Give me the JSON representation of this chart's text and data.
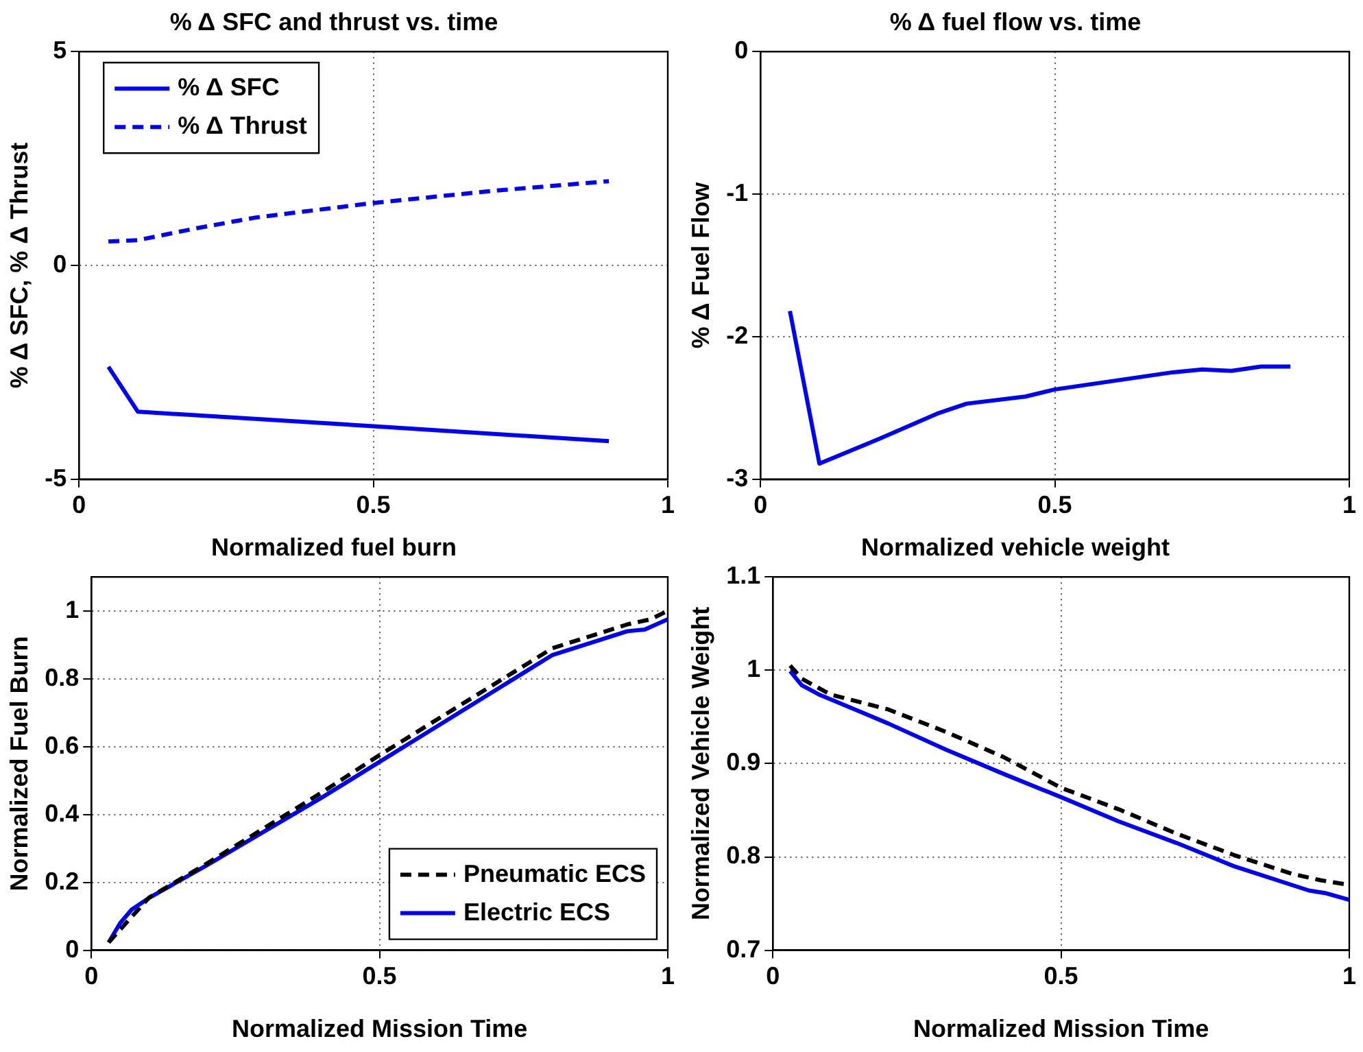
{
  "chart_data": [
    {
      "type": "line",
      "title": "% Δ SFC and thrust vs. time",
      "ylabel": "% Δ SFC, % Δ Thrust",
      "xlim": [
        0,
        1
      ],
      "xticks": [
        0,
        0.5,
        1
      ],
      "ylim": [
        -5,
        5
      ],
      "yticks": [
        -5,
        0,
        5
      ],
      "grid": true,
      "legend": "top left",
      "marker": "none",
      "series": [
        {
          "name": "% Δ SFC",
          "color": "#0000ff",
          "line_style": "solid",
          "x": [
            0.05,
            0.1,
            0.5,
            0.9
          ],
          "values": [
            -2.37,
            -3.42,
            -3.76,
            -4.11
          ]
        },
        {
          "name": "% Δ Thrust",
          "color": "#0000ff",
          "line_style": "dashed",
          "x": [
            0.05,
            0.1,
            0.2,
            0.3,
            0.5,
            0.7,
            0.9
          ],
          "values": [
            0.56,
            0.59,
            0.87,
            1.12,
            1.46,
            1.74,
            1.97
          ]
        }
      ]
    },
    {
      "type": "line",
      "title": "% Δ fuel flow vs. time",
      "ylabel": "% Δ Fuel Flow",
      "xlim": [
        0,
        1
      ],
      "xticks": [
        0,
        0.5,
        1
      ],
      "ylim": [
        -3,
        0
      ],
      "yticks": [
        -3,
        -2,
        -1,
        0
      ],
      "grid": true,
      "marker": "none",
      "series": [
        {
          "color": "#0000ff",
          "line_style": "solid",
          "x": [
            0.05,
            0.1,
            0.2,
            0.3,
            0.35,
            0.45,
            0.5,
            0.6,
            0.7,
            0.75,
            0.8,
            0.85,
            0.9
          ],
          "values": [
            -1.82,
            -2.89,
            -2.72,
            -2.54,
            -2.47,
            -2.42,
            -2.37,
            -2.31,
            -2.25,
            -2.23,
            -2.24,
            -2.21,
            -2.21
          ]
        }
      ]
    },
    {
      "type": "line",
      "title": "Normalized fuel burn",
      "xlabel": "Normalized Mission Time",
      "ylabel": "Normalized Fuel Burn",
      "xlim": [
        0,
        1
      ],
      "xticks": [
        0,
        0.5,
        1
      ],
      "ylim": [
        0,
        1.1
      ],
      "yticks": [
        0,
        0.2,
        0.4,
        0.6,
        0.8,
        1
      ],
      "grid": true,
      "legend": "bottom right",
      "marker": "none",
      "series": [
        {
          "name": "Pneumatic ECS",
          "color": "#000000",
          "line_style": "dashed",
          "x": [
            0.03,
            0.1,
            0.2,
            0.3,
            0.4,
            0.5,
            0.6,
            0.7,
            0.8,
            0.93,
            0.97,
            1.0
          ],
          "values": [
            0.023,
            0.155,
            0.255,
            0.36,
            0.465,
            0.575,
            0.68,
            0.785,
            0.89,
            0.96,
            0.975,
            1.0
          ]
        },
        {
          "name": "Electric ECS",
          "color": "#0000ff",
          "line_style": "solid",
          "x": [
            0.03,
            0.05,
            0.07,
            0.1,
            0.2,
            0.3,
            0.4,
            0.5,
            0.6,
            0.7,
            0.8,
            0.93,
            0.96,
            1.0
          ],
          "values": [
            0.023,
            0.08,
            0.12,
            0.154,
            0.25,
            0.35,
            0.45,
            0.555,
            0.66,
            0.765,
            0.87,
            0.94,
            0.945,
            0.975
          ]
        }
      ]
    },
    {
      "type": "line",
      "title": "Normalized vehicle weight",
      "xlabel": "Normalized Mission Time",
      "ylabel": "Normalized Vehicle Weight",
      "xlim": [
        0,
        1
      ],
      "xticks": [
        0,
        0.5,
        1
      ],
      "ylim": [
        0.7,
        1.1
      ],
      "yticks": [
        0.7,
        0.8,
        0.9,
        1,
        1.1
      ],
      "grid": true,
      "marker": "none",
      "series": [
        {
          "color": "#000000",
          "line_style": "dashed",
          "x": [
            0.03,
            0.05,
            0.1,
            0.2,
            0.3,
            0.4,
            0.5,
            0.6,
            0.7,
            0.8,
            0.9,
            0.95,
            1.0
          ],
          "values": [
            1.005,
            0.991,
            0.974,
            0.958,
            0.934,
            0.907,
            0.874,
            0.851,
            0.825,
            0.802,
            0.782,
            0.775,
            0.77
          ]
        },
        {
          "color": "#0000ff",
          "line_style": "solid",
          "x": [
            0.03,
            0.05,
            0.08,
            0.2,
            0.3,
            0.4,
            0.5,
            0.6,
            0.7,
            0.8,
            0.93,
            0.96,
            1.0
          ],
          "values": [
            0.999,
            0.984,
            0.974,
            0.943,
            0.915,
            0.889,
            0.864,
            0.838,
            0.815,
            0.79,
            0.764,
            0.761,
            0.754
          ]
        }
      ]
    }
  ]
}
